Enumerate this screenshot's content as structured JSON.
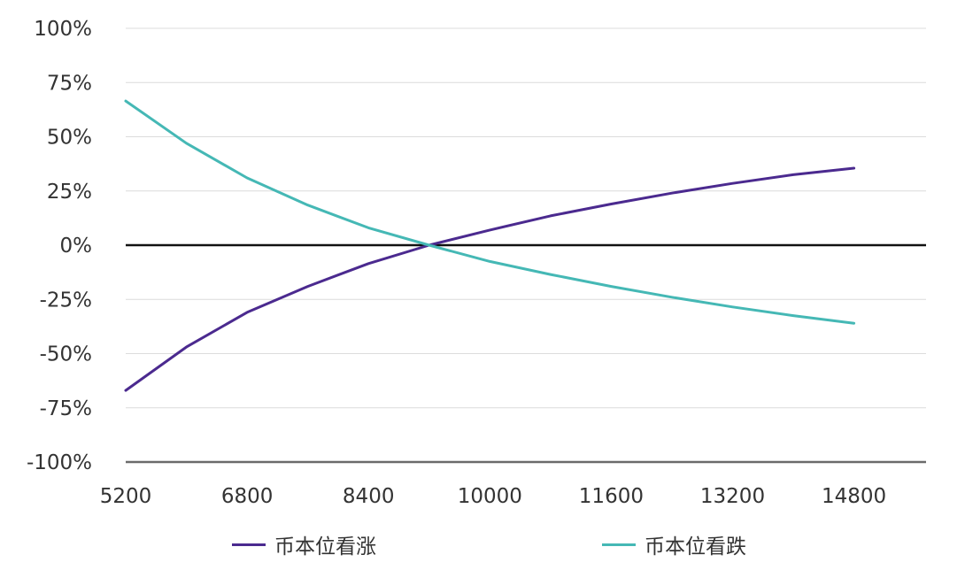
{
  "chart_data": {
    "type": "line",
    "title": "",
    "xlabel": "",
    "ylabel": "",
    "x_ticks": [
      "5200",
      "6800",
      "8400",
      "10000",
      "11600",
      "13200",
      "14800"
    ],
    "y_ticks": [
      "100%",
      "75%",
      "50%",
      "25%",
      "0%",
      "-25%",
      "-50%",
      "-75%",
      "-100%"
    ],
    "xlim": [
      5200,
      15750
    ],
    "ylim": [
      -1.0,
      1.0
    ],
    "grid": "horizontal",
    "legend": "bottom",
    "series": [
      {
        "name": "币本位看涨",
        "color": "#4b2a8f",
        "x": [
          5200,
          6000,
          6800,
          7600,
          8400,
          9200,
          10000,
          10800,
          11600,
          12400,
          13200,
          14000,
          14800
        ],
        "y": [
          -0.67,
          -0.47,
          -0.31,
          -0.19,
          -0.085,
          0.0,
          0.07,
          0.135,
          0.19,
          0.24,
          0.285,
          0.325,
          0.355
        ]
      },
      {
        "name": "币本位看跌",
        "color": "#45b8b5",
        "x": [
          5200,
          6000,
          6800,
          7600,
          8400,
          9200,
          10000,
          10800,
          11600,
          12400,
          13200,
          14000,
          14800
        ],
        "y": [
          0.665,
          0.47,
          0.31,
          0.185,
          0.08,
          0.0,
          -0.075,
          -0.135,
          -0.19,
          -0.24,
          -0.285,
          -0.325,
          -0.36
        ]
      }
    ]
  }
}
